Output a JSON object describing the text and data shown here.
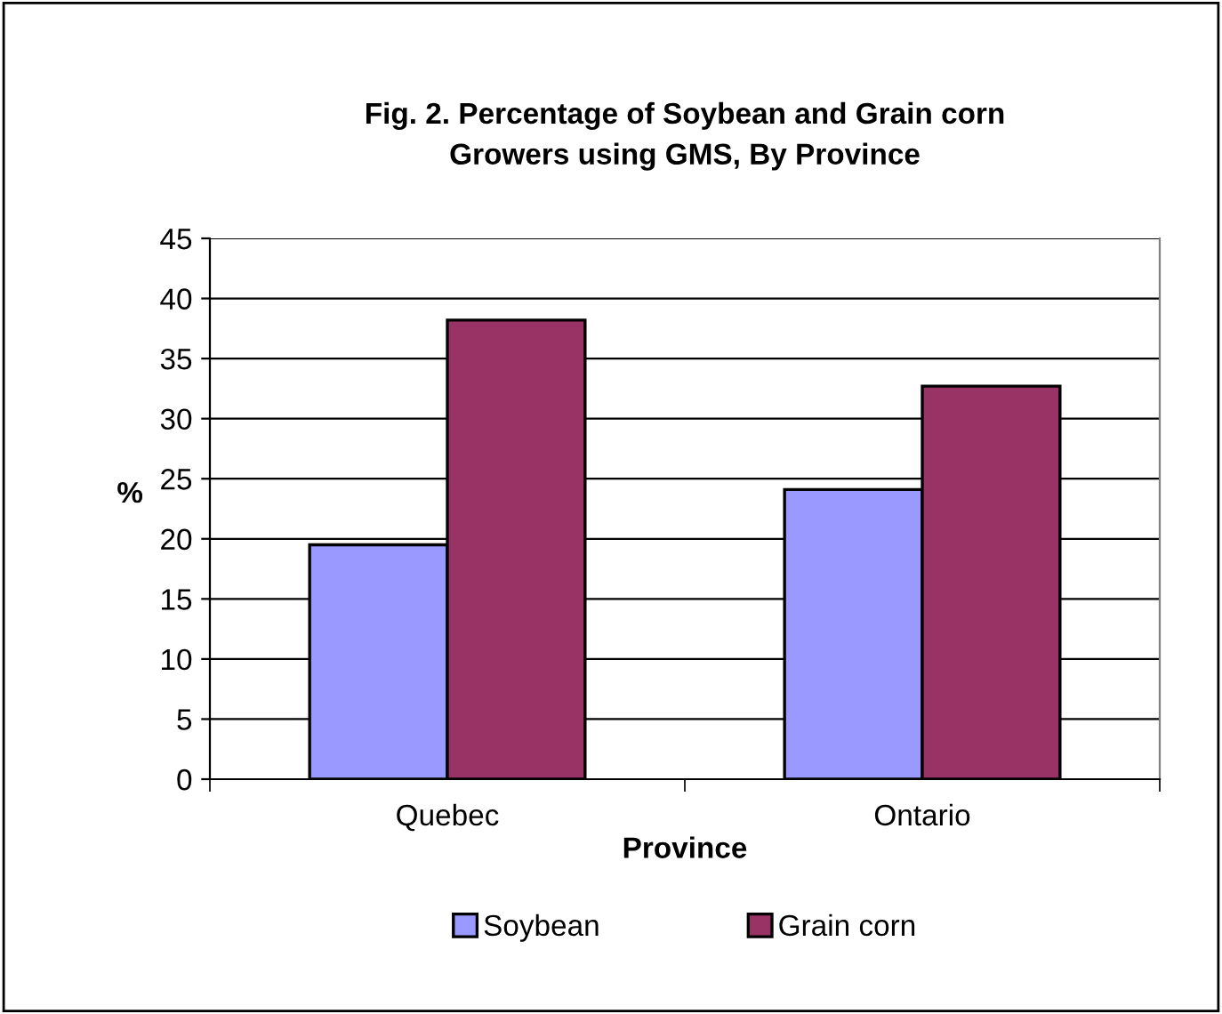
{
  "chart_data": {
    "type": "bar",
    "title": "Fig. 2. Percentage of Soybean and Grain corn\nGrowers using GMS, By Province",
    "xlabel": "Province",
    "ylabel": "%",
    "categories": [
      "Quebec",
      "Ontario"
    ],
    "series": [
      {
        "name": "Soybean",
        "color": "#9999ff",
        "values": [
          19.5,
          24.1
        ]
      },
      {
        "name": "Grain corn",
        "color": "#993366",
        "values": [
          38.2,
          32.7
        ]
      }
    ],
    "ylim": [
      0,
      45
    ],
    "yticks": [
      0,
      5,
      10,
      15,
      20,
      25,
      30,
      35,
      40,
      45
    ],
    "grid": "y",
    "legend": "bottom"
  }
}
